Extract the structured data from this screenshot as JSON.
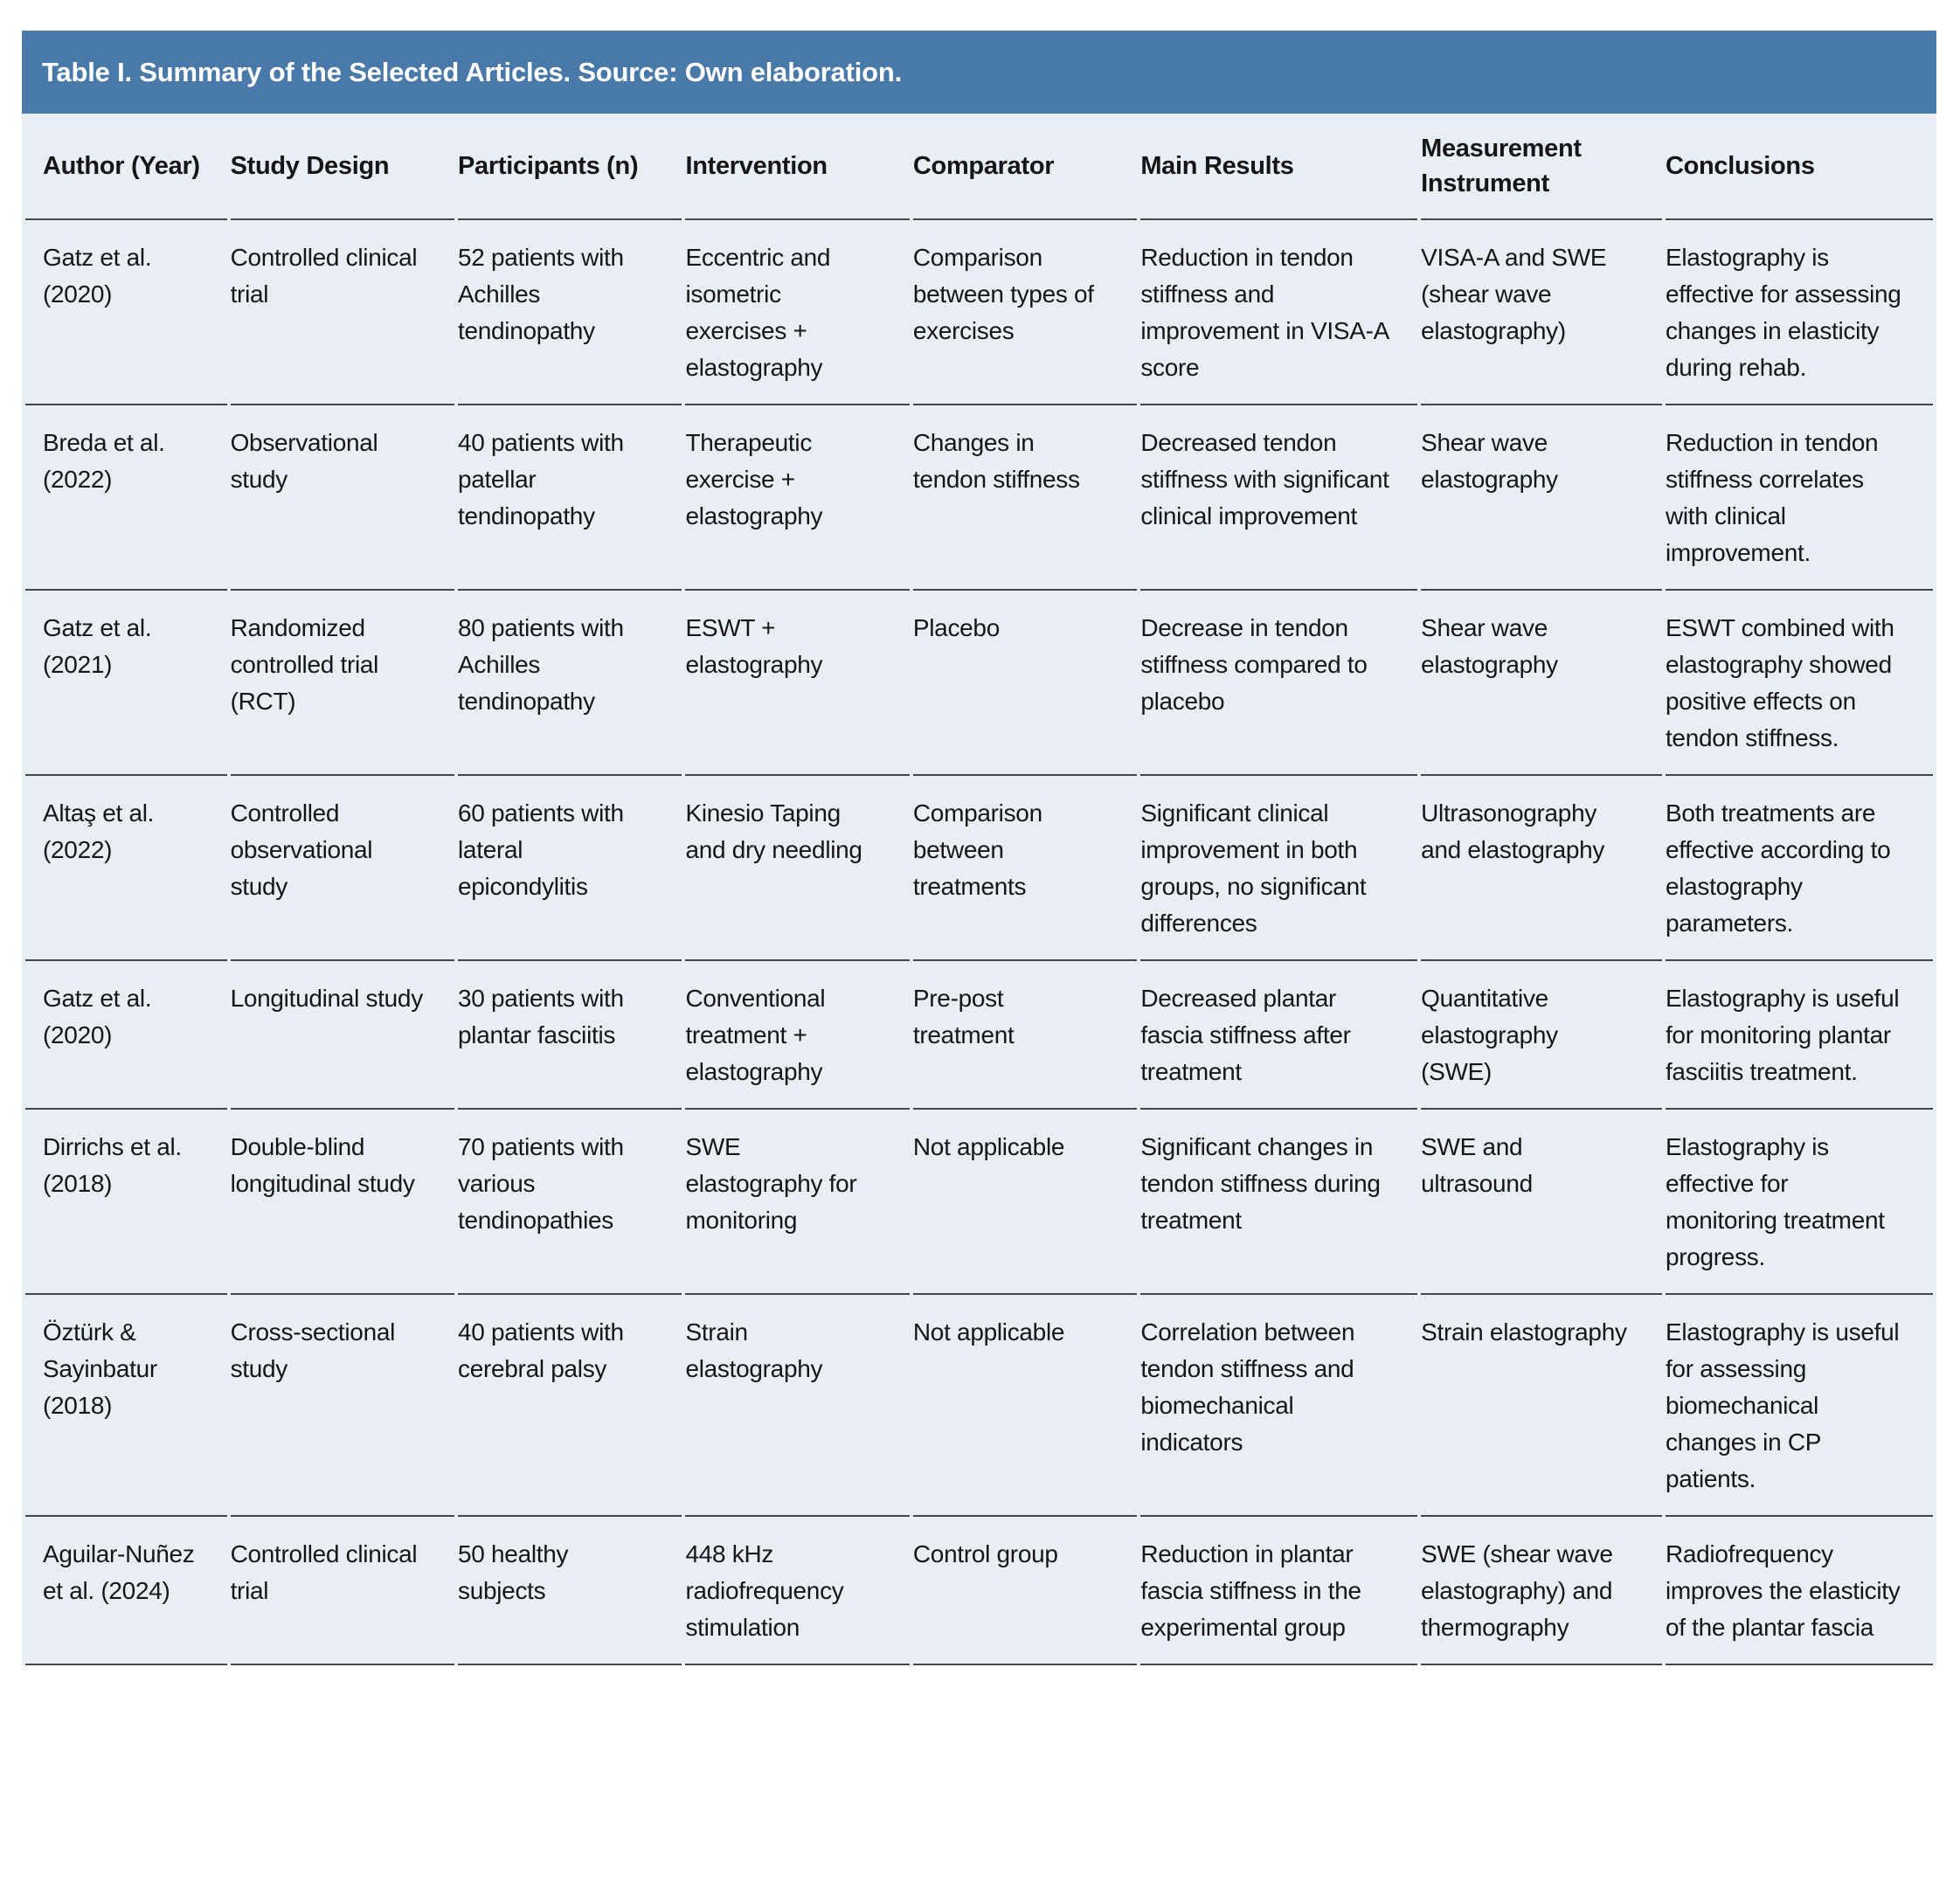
{
  "colors": {
    "header_bar_bg": "#4979a8",
    "table_body_bg": "#e9edf4",
    "row_rule": "#464646",
    "title_text": "#ffffff",
    "body_text": "#161616"
  },
  "title": "Table I. Summary of the Selected Articles. Source: Own elaboration.",
  "table": {
    "column_keys": [
      "author",
      "design",
      "participants",
      "intervention",
      "comparator",
      "results",
      "instrument",
      "conclusions"
    ],
    "columns": [
      {
        "label": "Author (Year)"
      },
      {
        "label": "Study Design"
      },
      {
        "label": "Participants (n)"
      },
      {
        "label": "Intervention"
      },
      {
        "label": "Comparator"
      },
      {
        "label": "Main Results"
      },
      {
        "label": "Measurement Instrument"
      },
      {
        "label": "Conclusions"
      }
    ],
    "rows": [
      {
        "author": "Gatz et al. (2020)",
        "design": "Controlled clinical trial",
        "participants": "52 patients with Achilles tendinopathy",
        "intervention": "Eccentric and isometric exercises + elastography",
        "comparator": "Comparison between types of exercises",
        "results": "Reduction in tendon stiffness and improvement in VISA-A score",
        "instrument": "VISA-A and SWE (shear wave elastography)",
        "conclusions": "Elastography is effective for assessing changes in elasticity during rehab."
      },
      {
        "author": "Breda et al. (2022)",
        "design": "Observational study",
        "participants": "40 patients with patellar tendinopathy",
        "intervention": "Therapeutic exercise + elastography",
        "comparator": "Changes in tendon stiffness",
        "results": "Decreased tendon stiffness with significant clinical improvement",
        "instrument": "Shear wave elastography",
        "conclusions": "Reduction in tendon stiffness correlates with clinical improvement."
      },
      {
        "author": "Gatz et al. (2021)",
        "design": "Randomized controlled trial (RCT)",
        "participants": "80 patients with Achilles tendinopathy",
        "intervention": "ESWT + elastography",
        "comparator": "Placebo",
        "results": "Decrease in tendon stiffness compared to placebo",
        "instrument": "Shear wave elastography",
        "conclusions": "ESWT combined with elastography showed positive effects on tendon stiffness."
      },
      {
        "author": "Altaş et al. (2022)",
        "design": "Controlled observational study",
        "participants": "60 patients with lateral epicondylitis",
        "intervention": "Kinesio Taping and dry needling",
        "comparator": "Comparison between treatments",
        "results": "Significant clinical improvement in both groups, no significant differences",
        "instrument": "Ultrasonography and elastography",
        "conclusions": "Both treatments are effective according to elastography parameters."
      },
      {
        "author": "Gatz et al. (2020)",
        "design": "Longitudinal study",
        "participants": "30 patients with plantar fasciitis",
        "intervention": "Conventional treatment + elastography",
        "comparator": "Pre-post treatment",
        "results": "Decreased plantar fascia stiffness after treatment",
        "instrument": "Quantitative elastography (SWE)",
        "conclusions": "Elastography is useful for monitoring plantar fasciitis treatment."
      },
      {
        "author": "Dirrichs et al. (2018)",
        "design": "Double-blind longitudinal study",
        "participants": "70 patients with various tendinopathies",
        "intervention": "SWE elastography for monitoring",
        "comparator": "Not applicable",
        "results": "Significant changes in tendon stiffness during treatment",
        "instrument": "SWE and ultrasound",
        "conclusions": "Elastography is effective for monitoring treatment progress."
      },
      {
        "author": "Öztürk & Sayinbatur (2018)",
        "design": "Cross-sectional study",
        "participants": "40 patients with cerebral palsy",
        "intervention": "Strain elastography",
        "comparator": "Not applicable",
        "results": "Correlation between tendon stiffness and biomechanical indicators",
        "instrument": "Strain elastography",
        "conclusions": "Elastography is useful for assessing biomechanical changes in CP patients."
      },
      {
        "author": "Aguilar-Nuñez et al. (2024)",
        "design": "Controlled clinical trial",
        "participants": "50 healthy subjects",
        "intervention": "448 kHz radiofrequency stimulation",
        "comparator": "Control group",
        "results": "Reduction in plantar fascia stiffness in the experimental group",
        "instrument": "SWE (shear wave elastography) and thermography",
        "conclusions": "Radiofrequency improves the elasticity of the plantar fascia"
      }
    ]
  }
}
